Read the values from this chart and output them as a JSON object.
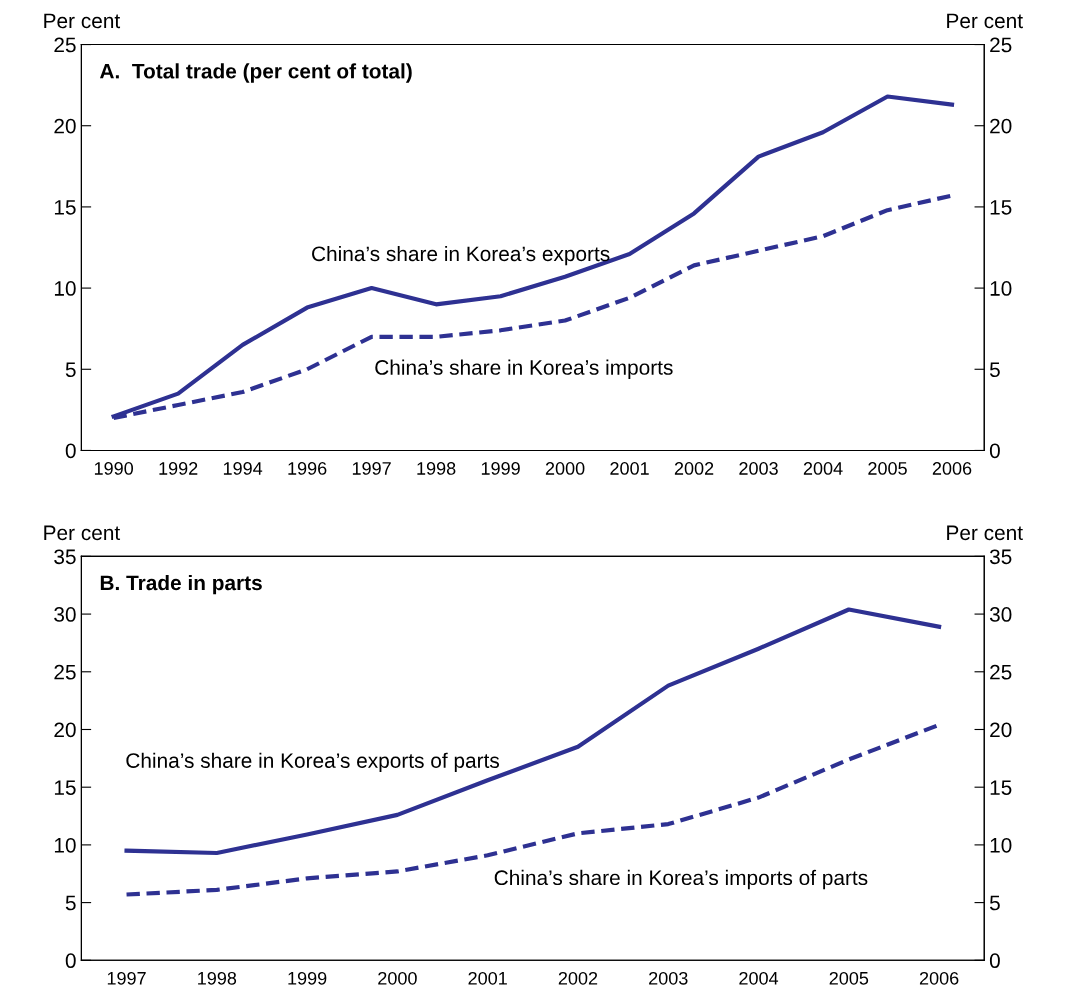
{
  "chart_data": [
    {
      "type": "line",
      "title": "A.  Total trade (per cent of total)",
      "ylabel": "Per cent",
      "y2label": "Per cent",
      "categories": [
        "1990",
        "1992",
        "1994",
        "1996",
        "1997",
        "1998",
        "1999",
        "2000",
        "2001",
        "2002",
        "2003",
        "2004",
        "2005",
        "2006"
      ],
      "series": [
        {
          "color": "#2e3192",
          "line_style": "solid",
          "values": [
            2.1,
            3.5,
            6.5,
            8.8,
            10.0,
            9.0,
            9.5,
            10.7,
            12.1,
            14.6,
            18.1,
            19.6,
            21.8,
            21.3
          ]
        },
        {
          "color": "#2e3192",
          "line_style": "dashed",
          "values": [
            2.0,
            2.8,
            3.6,
            5.0,
            7.0,
            7.0,
            7.4,
            8.0,
            9.4,
            11.4,
            12.3,
            13.2,
            14.8,
            15.7
          ]
        }
      ],
      "ylim": [
        0,
        25
      ],
      "yticks": [
        0,
        5,
        10,
        15,
        20,
        25
      ],
      "y2lim": [
        0,
        25
      ],
      "y2ticks": [
        0,
        5,
        10,
        15,
        20,
        25
      ],
      "grid": false,
      "annotations": [
        "China’s share in Korea’s exports",
        "China’s share in Korea’s imports"
      ]
    },
    {
      "type": "line",
      "title": "B. Trade in parts",
      "ylabel": "Per cent",
      "y2label": "Per cent",
      "categories": [
        "1997",
        "1998",
        "1999",
        "2000",
        "2001",
        "2002",
        "2003",
        "2004",
        "2005",
        "2006"
      ],
      "series": [
        {
          "color": "#2e3192",
          "line_style": "solid",
          "values": [
            9.5,
            9.3,
            10.9,
            12.6,
            15.6,
            18.5,
            23.8,
            27.0,
            30.4,
            28.9
          ]
        },
        {
          "color": "#2e3192",
          "line_style": "dashed",
          "values": [
            5.7,
            6.1,
            7.1,
            7.7,
            9.1,
            11.0,
            11.8,
            14.1,
            17.4,
            20.4
          ]
        }
      ],
      "ylim": [
        0,
        35
      ],
      "yticks": [
        0,
        5,
        10,
        15,
        20,
        25,
        30,
        35
      ],
      "y2lim": [
        0,
        35
      ],
      "y2ticks": [
        0,
        5,
        10,
        15,
        20,
        25,
        30,
        35
      ],
      "grid": false,
      "annotations": [
        "China’s share in Korea’s exports of parts",
        "China’s share in Korea’s imports of parts"
      ]
    }
  ]
}
